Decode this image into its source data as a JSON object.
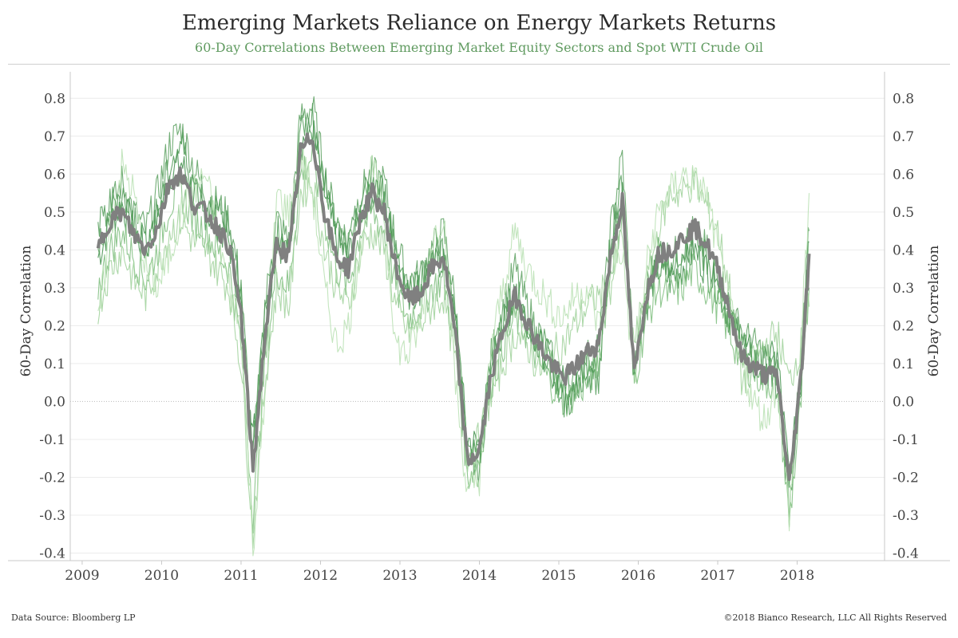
{
  "header": {
    "title": "Emerging Markets Reliance on Energy Markets Returns",
    "subtitle": "60-Day Correlations Between Emerging Market Equity Sectors and Spot WTI Crude Oil"
  },
  "footer": {
    "source": "Data Source: Bloomberg LP",
    "copyright": "©2018 Bianco Research, LLC  All Rights Reserved"
  },
  "colors": {
    "average": "#808080",
    "sectors": [
      "#3f8f4a",
      "#5aa05f",
      "#7cbd7c",
      "#9fd19a",
      "#b9e0b3",
      "#4f9a56"
    ],
    "grid": "#ececec",
    "zero_line": "#bbbbbb"
  },
  "chart_data": {
    "type": "line",
    "title": "Emerging Markets Reliance on Energy Markets Returns",
    "subtitle": "60-Day Correlations Between Emerging Market Equity Sectors and Spot WTI Crude Oil",
    "ylabel": "60-Day Correlation",
    "ylabel_right": "60-Day Correlation",
    "xlim": [
      2008.85,
      2019.1
    ],
    "ylim": [
      -0.42,
      0.87
    ],
    "x_ticks": [
      2009,
      2010,
      2011,
      2012,
      2013,
      2014,
      2015,
      2016,
      2017,
      2018
    ],
    "y_ticks": [
      "0.8",
      "0.7",
      "0.6",
      "0.5",
      "0.4",
      "0.3",
      "0.2",
      "0.1",
      "0.0",
      "-0.1",
      "-0.2",
      "-0.3",
      "-0.4"
    ],
    "grid": true,
    "legend": "none",
    "x": [
      2009.2,
      2009.35,
      2009.5,
      2009.65,
      2009.8,
      2009.95,
      2010.1,
      2010.25,
      2010.4,
      2010.55,
      2010.7,
      2010.85,
      2011.0,
      2011.15,
      2011.3,
      2011.45,
      2011.6,
      2011.75,
      2011.9,
      2012.05,
      2012.2,
      2012.35,
      2012.5,
      2012.65,
      2012.8,
      2012.95,
      2013.1,
      2013.25,
      2013.4,
      2013.55,
      2013.7,
      2013.85,
      2014.0,
      2014.15,
      2014.3,
      2014.45,
      2014.6,
      2014.75,
      2014.9,
      2015.05,
      2015.2,
      2015.35,
      2015.5,
      2015.65,
      2015.8,
      2015.95,
      2016.1,
      2016.25,
      2016.4,
      2016.55,
      2016.7,
      2016.85,
      2017.0,
      2017.15,
      2017.3,
      2017.45,
      2017.6,
      2017.75,
      2017.9,
      2018.05,
      2018.15
    ],
    "series": [
      {
        "values": [
          0.38,
          0.47,
          0.52,
          0.45,
          0.4,
          0.48,
          0.6,
          0.63,
          0.55,
          0.5,
          0.47,
          0.42,
          0.25,
          -0.1,
          0.2,
          0.43,
          0.38,
          0.68,
          0.72,
          0.55,
          0.42,
          0.38,
          0.5,
          0.55,
          0.52,
          0.38,
          0.28,
          0.3,
          0.35,
          0.38,
          0.2,
          -0.1,
          -0.12,
          0.1,
          0.2,
          0.28,
          0.22,
          0.15,
          0.1,
          0.05,
          0.07,
          0.1,
          0.15,
          0.4,
          0.55,
          0.1,
          0.28,
          0.35,
          0.32,
          0.35,
          0.4,
          0.35,
          0.3,
          0.22,
          0.15,
          0.12,
          0.1,
          0.12,
          -0.2,
          0.05,
          0.38
        ]
      },
      {
        "values": [
          0.42,
          0.5,
          0.58,
          0.5,
          0.45,
          0.55,
          0.68,
          0.72,
          0.62,
          0.55,
          0.52,
          0.48,
          0.3,
          -0.15,
          0.25,
          0.48,
          0.42,
          0.75,
          0.78,
          0.6,
          0.48,
          0.42,
          0.55,
          0.6,
          0.58,
          0.42,
          0.32,
          0.33,
          0.4,
          0.45,
          0.25,
          -0.15,
          -0.18,
          0.12,
          0.25,
          0.35,
          0.25,
          0.18,
          0.12,
          0.02,
          0.05,
          0.12,
          0.1,
          0.45,
          0.65,
          0.08,
          0.3,
          0.4,
          0.38,
          0.4,
          0.45,
          0.4,
          0.35,
          0.25,
          0.18,
          0.15,
          0.12,
          0.08,
          -0.28,
          0.1,
          0.45
        ]
      },
      {
        "values": [
          0.3,
          0.4,
          0.45,
          0.38,
          0.32,
          0.4,
          0.52,
          0.55,
          0.48,
          0.45,
          0.4,
          0.35,
          0.15,
          -0.3,
          0.1,
          0.35,
          0.3,
          0.6,
          0.65,
          0.48,
          0.35,
          0.3,
          0.45,
          0.5,
          0.45,
          0.3,
          0.22,
          0.25,
          0.3,
          0.32,
          0.15,
          -0.2,
          -0.15,
          0.05,
          0.15,
          0.22,
          0.18,
          0.1,
          0.05,
          0.0,
          0.02,
          0.05,
          0.1,
          0.35,
          0.5,
          0.05,
          0.22,
          0.3,
          0.28,
          0.3,
          0.35,
          0.3,
          0.25,
          0.18,
          0.1,
          0.08,
          0.05,
          0.05,
          -0.32,
          0.0,
          0.3
        ]
      },
      {
        "values": [
          0.25,
          0.35,
          0.4,
          0.32,
          0.28,
          0.35,
          0.45,
          0.48,
          0.42,
          0.4,
          0.35,
          0.3,
          0.1,
          -0.35,
          0.05,
          0.3,
          0.25,
          0.55,
          0.58,
          0.4,
          0.3,
          0.25,
          0.4,
          0.45,
          0.4,
          0.25,
          0.18,
          0.2,
          0.25,
          0.28,
          0.1,
          -0.15,
          -0.1,
          0.02,
          0.1,
          0.18,
          0.15,
          0.08,
          0.12,
          0.15,
          0.2,
          0.25,
          0.28,
          0.3,
          0.45,
          0.15,
          0.3,
          0.45,
          0.55,
          0.55,
          0.58,
          0.52,
          0.45,
          0.3,
          0.05,
          0.1,
          0.15,
          0.18,
          0.05,
          0.15,
          0.25
        ]
      },
      {
        "values": [
          0.2,
          0.45,
          0.62,
          0.55,
          0.35,
          0.3,
          0.38,
          0.5,
          0.55,
          0.6,
          0.45,
          0.3,
          0.2,
          -0.38,
          0.0,
          0.55,
          0.5,
          0.65,
          0.55,
          0.3,
          0.15,
          0.2,
          0.4,
          0.62,
          0.5,
          0.15,
          0.12,
          0.2,
          0.42,
          0.5,
          0.05,
          -0.25,
          -0.2,
          0.15,
          0.3,
          0.45,
          0.35,
          0.3,
          0.25,
          0.22,
          0.28,
          0.3,
          0.2,
          0.35,
          0.4,
          0.05,
          0.35,
          0.5,
          0.55,
          0.6,
          0.58,
          0.55,
          0.4,
          0.25,
          0.1,
          0.0,
          -0.05,
          0.05,
          -0.3,
          0.15,
          0.55
        ]
      },
      {
        "values": [
          0.45,
          0.52,
          0.55,
          0.48,
          0.42,
          0.5,
          0.62,
          0.68,
          0.58,
          0.52,
          0.5,
          0.45,
          0.28,
          -0.12,
          0.22,
          0.45,
          0.4,
          0.7,
          0.75,
          0.58,
          0.45,
          0.4,
          0.52,
          0.58,
          0.55,
          0.4,
          0.3,
          0.32,
          0.38,
          0.4,
          0.22,
          -0.12,
          -0.15,
          0.1,
          0.22,
          0.3,
          0.2,
          0.15,
          0.08,
          0.0,
          0.02,
          0.08,
          0.05,
          0.42,
          0.6,
          0.05,
          0.25,
          0.38,
          0.35,
          0.38,
          0.42,
          0.38,
          0.32,
          0.22,
          0.15,
          0.1,
          0.08,
          0.05,
          -0.22,
          0.05,
          0.42
        ]
      },
      {
        "values": [
          0.4,
          0.48,
          0.5,
          0.44,
          0.4,
          0.46,
          0.58,
          0.6,
          0.52,
          0.5,
          0.46,
          0.41,
          0.23,
          -0.18,
          0.17,
          0.42,
          0.38,
          0.66,
          0.7,
          0.5,
          0.38,
          0.35,
          0.48,
          0.55,
          0.5,
          0.35,
          0.27,
          0.28,
          0.35,
          0.38,
          0.17,
          -0.16,
          -0.13,
          0.07,
          0.19,
          0.28,
          0.21,
          0.15,
          0.1,
          0.06,
          0.09,
          0.13,
          0.15,
          0.38,
          0.53,
          0.07,
          0.28,
          0.39,
          0.4,
          0.43,
          0.46,
          0.42,
          0.35,
          0.24,
          0.12,
          0.09,
          0.07,
          0.07,
          -0.22,
          0.07,
          0.39
        ]
      }
    ]
  }
}
